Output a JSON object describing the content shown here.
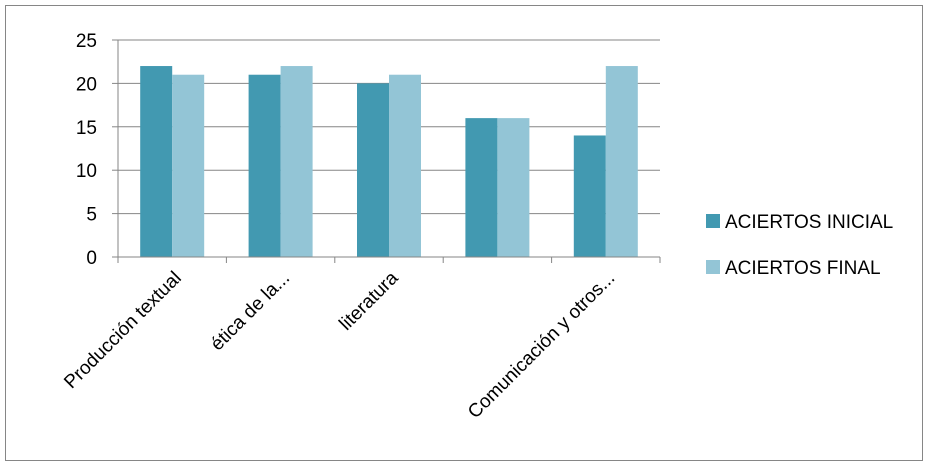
{
  "chart_data": {
    "type": "bar",
    "title": "",
    "xlabel": "",
    "ylabel": "",
    "categories": [
      "Producción textual",
      "ética de la...",
      "literatura",
      "",
      "Comunicación y otros..."
    ],
    "series": [
      {
        "name": "ACIERTOS INICIAL",
        "color": "#4299B1",
        "values": [
          22,
          21,
          20,
          16,
          14
        ]
      },
      {
        "name": "ACIERTOS FINAL",
        "color": "#93C5D6",
        "values": [
          21,
          22,
          21,
          16,
          22
        ]
      }
    ],
    "ylim": [
      0,
      25
    ],
    "yticks": [
      0,
      5,
      10,
      15,
      20,
      25
    ],
    "grid": true,
    "legend": "right"
  }
}
